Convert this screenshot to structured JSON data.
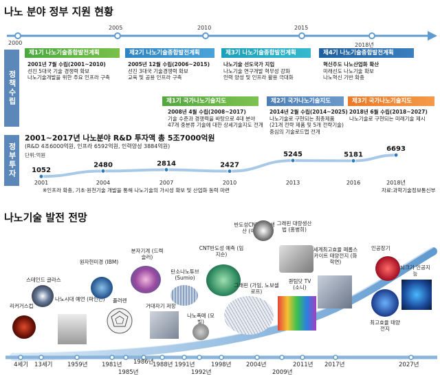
{
  "section1": {
    "title": "나노 분야 정부 지원 현황",
    "years": [
      "2000",
      "2005",
      "2010",
      "2015",
      "2018년"
    ],
    "label_support": "정책수립",
    "label_invest": "정부투자",
    "plans": [
      {
        "name": "제1기 나노기술종합발전계획",
        "lines": [
          "2001년 7월 수립(2001~2010)",
          "선진 5대국 기술 경쟁력 확보",
          "나노기술개발을 위한 주요 인프라 구축"
        ]
      },
      {
        "name": "제2기 나노기술종합발전계획",
        "lines": [
          "2005년 12월 수립(2006~2015)",
          "선진 3대국 기술경쟁력 확보",
          "교육 및 공용 인프라 구축"
        ]
      },
      {
        "name": "제3기 나노기술종합발전계획",
        "lines": [
          "나노기술 선도국가 지입",
          "나노기술 연구개발 혁무성 강화",
          "인력 양성 및 인프라 활용 극대화"
        ]
      },
      {
        "name": "제4기 나노기술종합발전계획",
        "lines": [
          "혁신주도 나노산업화 확산",
          "미래선도 나노기술 확보",
          "나노혁신 기반 확충"
        ]
      }
    ],
    "roadmaps": [
      {
        "name": "제1기 국가나노기술지도",
        "lines": [
          "2008년 4월 수립(2008~2017)",
          "기술 수준과 경쟁력을 바탕으로 4대 분야",
          "47개 중분류 기술에 대한 상세기술지도 전개"
        ]
      },
      {
        "name": "제2기 국가나노기술지도",
        "lines": [
          "2014년 2월 수립(2014~2025)",
          "나노기술로 구현되는 최종제품",
          "(21개 전략 제품 및 5개 전략기술)",
          "중심의 기술로드맵 전개"
        ]
      },
      {
        "name": "제3기 국가나노기술지도",
        "lines": [
          "2018년 6월 수립(2018~2027)",
          "나노기술로 구현되는 미래기술 제시"
        ]
      }
    ],
    "invest_title": "2001~2017년 나노분야 R&D 투자액 총 5조7000억원",
    "invest_sub": "(R&D 4조6000억원, 인프라 6592억원, 인력양성 3884억원)",
    "unit": "단위:억원",
    "footnote": "※인프라 확충, 기초·원천기술 개발을 통해 나노기술의 가시성 확보 및 산업화 동력 마련",
    "source": "자료:과학기술정보통신부"
  },
  "chart_data": {
    "type": "line",
    "title": "2001~2017년 나노분야 R&D 투자액 총 5조7000억원",
    "ylabel": "단위:억원",
    "x": [
      "2001",
      "2004",
      "2007",
      "2010",
      "2013",
      "2016",
      "2018년"
    ],
    "values": [
      1052,
      2480,
      2814,
      2427,
      5245,
      5181,
      6693
    ]
  },
  "section2": {
    "title": "나노기술 발전 전망",
    "features": [
      {
        "name": "리커거스컵",
        "year": "4세기"
      },
      {
        "name": "스테인드 글라스",
        "year": "13세기"
      },
      {
        "name": "나노시대 예언 (파인만)",
        "year": "1959년"
      },
      {
        "name": "원자현미경 (IBM)",
        "year": "1981년"
      },
      {
        "name": "플러렌",
        "year": "1985년"
      },
      {
        "name": "분자기계 (드렉슬러)",
        "year": "1986년"
      },
      {
        "name": "거대자기 저항",
        "year": "1988년"
      },
      {
        "name": "탄소나노튜브 (Sumio)",
        "year": "1991년"
      },
      {
        "name": "나노촉매 (모빌)",
        "year": "1992년"
      },
      {
        "name": "CNT반도성 예측 (임지순)",
        "year": "1998년"
      },
      {
        "name": "반도성CNT 대량생산 (이영희)",
        "year": "2004년"
      },
      {
        "name": "그래핀 (가임, 노보셀로프)",
        "year": "2004년"
      },
      {
        "name": "그래핀 대량생산법 (홍병희)",
        "year": "2009년"
      },
      {
        "name": "퀀텀닷 TV (소니)",
        "year": "2011년"
      },
      {
        "name": "세계최고효율 페롭스카이트 태양전지 (화학연)",
        "year": "2017년"
      },
      {
        "name": "인공장기",
        "year": "2027년"
      },
      {
        "name": "뇌크기 인공지능",
        "year": "2027년"
      },
      {
        "name": "최고효율 태양전지",
        "year": "2027년"
      }
    ],
    "axis_years": [
      "4세기",
      "13세기",
      "1959년",
      "1981년",
      "1985년",
      "1986년",
      "1988년",
      "1991년",
      "1992년",
      "1998년",
      "2004년",
      "2009년",
      "2011년",
      "2017년",
      "2027년"
    ]
  }
}
